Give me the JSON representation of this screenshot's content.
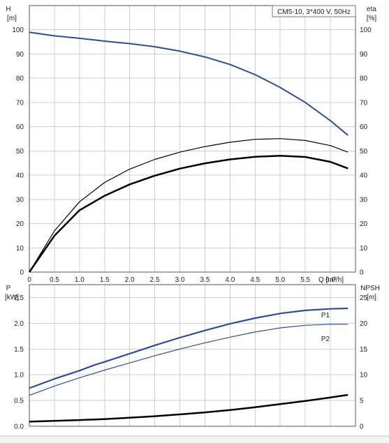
{
  "chart_data": [
    {
      "type": "line",
      "title": "CM5-10, 3*400 V, 50Hz",
      "y_left_label": "H",
      "y_left_unit": "[m]",
      "y_right_label": "eta",
      "y_right_unit": "[%]",
      "x_label": "Q [m³/h]",
      "xlim": [
        0,
        6.5
      ],
      "x_ticks": [
        "0",
        "0.5",
        "1.0",
        "1.5",
        "2.0",
        "2.5",
        "3.0",
        "3.5",
        "4.0",
        "4.5",
        "5.0",
        "5.5",
        "6.0"
      ],
      "ylim": [
        0,
        110
      ],
      "y_ticks": [
        "0",
        "10",
        "20",
        "30",
        "40",
        "50",
        "60",
        "70",
        "80",
        "90",
        "100"
      ],
      "grid": true,
      "series": [
        {
          "color": "#2e4f8f",
          "x": [
            0,
            0.5,
            1.0,
            1.3,
            1.5,
            2.0,
            2.5,
            3.0,
            3.5,
            4.0,
            4.5,
            5.0,
            5.5,
            6.0,
            6.35
          ],
          "y": [
            99,
            97.5,
            96.5,
            95.8,
            95.3,
            94.3,
            93.0,
            91.2,
            88.8,
            85.7,
            81.5,
            76.2,
            70.0,
            62.5,
            56.5
          ]
        },
        {
          "color": "#000000",
          "x": [
            0,
            0.5,
            1.0,
            1.5,
            2.0,
            2.5,
            3.0,
            3.5,
            4.0,
            4.5,
            5.0,
            5.5,
            6.0,
            6.35
          ],
          "y": [
            0,
            17,
            29,
            37,
            42.5,
            46.5,
            49.5,
            51.8,
            53.6,
            54.8,
            55.1,
            54.3,
            52.2,
            49.5
          ]
        },
        {
          "color": "#000000",
          "x": [
            0,
            0.5,
            1.0,
            1.5,
            2.0,
            2.5,
            3.0,
            3.5,
            4.0,
            4.5,
            5.0,
            5.5,
            6.0,
            6.35
          ],
          "y": [
            0,
            15,
            25.5,
            31.5,
            36.2,
            39.8,
            42.7,
            44.9,
            46.5,
            47.6,
            48.0,
            47.5,
            45.5,
            42.8
          ]
        }
      ]
    },
    {
      "type": "line",
      "y_left_label": "P",
      "y_left_unit": "[kW]",
      "y_right_label": "NPSH",
      "y_right_unit": "[m]",
      "xlim": [
        0,
        6.5
      ],
      "ylim": [
        0,
        2.75
      ],
      "y_ticks": [
        "0.0",
        "0.5",
        "1.0",
        "1.5",
        "2.0",
        "2.5"
      ],
      "y_right_ticks": [
        "0",
        "5",
        "10",
        "15",
        "20",
        "25"
      ],
      "grid": true,
      "series": [
        {
          "name": "P1",
          "color": "#2e4f8f",
          "x": [
            0,
            0.5,
            1.0,
            1.3,
            1.5,
            2.0,
            2.5,
            3.0,
            3.5,
            4.0,
            4.5,
            5.0,
            5.5,
            6.0,
            6.35
          ],
          "y": [
            0.74,
            0.92,
            1.08,
            1.19,
            1.25,
            1.41,
            1.57,
            1.72,
            1.86,
            1.99,
            2.1,
            2.19,
            2.25,
            2.28,
            2.29
          ]
        },
        {
          "name": "P2",
          "color": "#2e4f8f",
          "x": [
            0,
            0.5,
            1.0,
            1.5,
            2.0,
            2.5,
            3.0,
            3.5,
            4.0,
            4.5,
            5.0,
            5.5,
            6.0,
            6.35
          ],
          "y": [
            0.6,
            0.78,
            0.94,
            1.09,
            1.23,
            1.37,
            1.5,
            1.62,
            1.73,
            1.83,
            1.91,
            1.96,
            1.98,
            1.98
          ]
        },
        {
          "axis": "right",
          "color": "#000000",
          "x": [
            0,
            0.5,
            1.0,
            1.5,
            2.0,
            2.5,
            3.0,
            3.5,
            4.0,
            4.5,
            5.0,
            5.5,
            6.0,
            6.35
          ],
          "y": [
            0.9,
            1.05,
            1.2,
            1.4,
            1.65,
            1.95,
            2.3,
            2.7,
            3.15,
            3.7,
            4.3,
            4.9,
            5.6,
            6.1
          ]
        }
      ]
    }
  ]
}
